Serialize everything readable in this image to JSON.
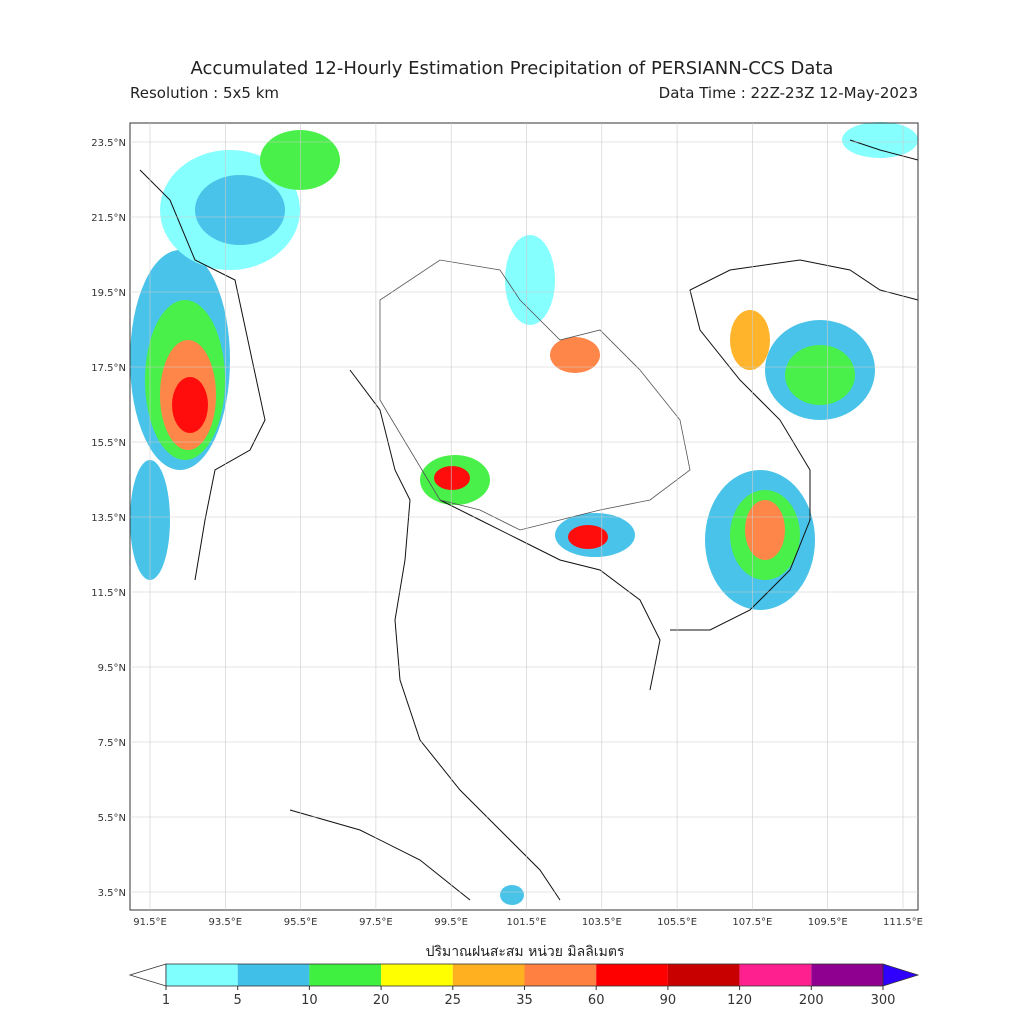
{
  "header": {
    "title": "Accumulated 12-Hourly Estimation Precipitation of PERSIANN-CCS Data",
    "resolution": "Resolution : 5x5 km",
    "data_time": "Data Time : 22Z-23Z 12-May-2023"
  },
  "map": {
    "lat_labels": [
      "23.5°N",
      "21.5°N",
      "19.5°N",
      "17.5°N",
      "15.5°N",
      "13.5°N",
      "11.5°N",
      "9.5°N",
      "7.5°N",
      "5.5°N",
      "3.5°N"
    ],
    "lon_labels": [
      "91.5°E",
      "93.5°E",
      "95.5°E",
      "97.5°E",
      "99.5°E",
      "101.5°E",
      "103.5°E",
      "105.5°E",
      "107.5°E",
      "109.5°E",
      "111.5°E"
    ]
  },
  "legend": {
    "title": "ปริมาณฝนสะสม หน่วย มิลลิเมตร",
    "levels": [
      "1",
      "5",
      "10",
      "20",
      "25",
      "35",
      "60",
      "90",
      "120",
      "200",
      "300"
    ],
    "colors": [
      "#80ffff",
      "#40c0e8",
      "#40f040",
      "#ffff00",
      "#ffb020",
      "#ff8040",
      "#ff0000",
      "#c80000",
      "#ff2090",
      "#900090"
    ],
    "under_color": "#ffffff",
    "over_color": "#3000ff"
  }
}
